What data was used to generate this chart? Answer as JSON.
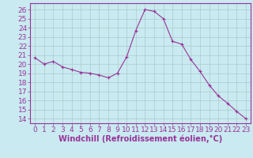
{
  "x": [
    0,
    1,
    2,
    3,
    4,
    5,
    6,
    7,
    8,
    9,
    10,
    11,
    12,
    13,
    14,
    15,
    16,
    17,
    18,
    19,
    20,
    21,
    22,
    23
  ],
  "y": [
    20.7,
    20.0,
    20.3,
    19.7,
    19.4,
    19.1,
    19.0,
    18.8,
    18.5,
    19.0,
    20.8,
    23.7,
    26.0,
    25.8,
    25.0,
    22.5,
    22.2,
    20.5,
    19.2,
    17.7,
    16.5,
    15.7,
    14.8,
    14.0
  ],
  "line_color": "#993399",
  "marker": "+",
  "marker_size": 3,
  "bg_color": "#c8eaf0",
  "grid_color": "#aacccc",
  "xlabel": "Windchill (Refroidissement éolien,°C)",
  "xlabel_color": "#993399",
  "tick_color": "#993399",
  "label_color": "#993399",
  "ylim": [
    13.5,
    26.7
  ],
  "xlim": [
    -0.5,
    23.5
  ],
  "yticks": [
    14,
    15,
    16,
    17,
    18,
    19,
    20,
    21,
    22,
    23,
    24,
    25,
    26
  ],
  "xticks": [
    0,
    1,
    2,
    3,
    4,
    5,
    6,
    7,
    8,
    9,
    10,
    11,
    12,
    13,
    14,
    15,
    16,
    17,
    18,
    19,
    20,
    21,
    22,
    23
  ],
  "tick_fontsize": 6.5,
  "xlabel_fontsize": 7,
  "spine_color": "#993399"
}
